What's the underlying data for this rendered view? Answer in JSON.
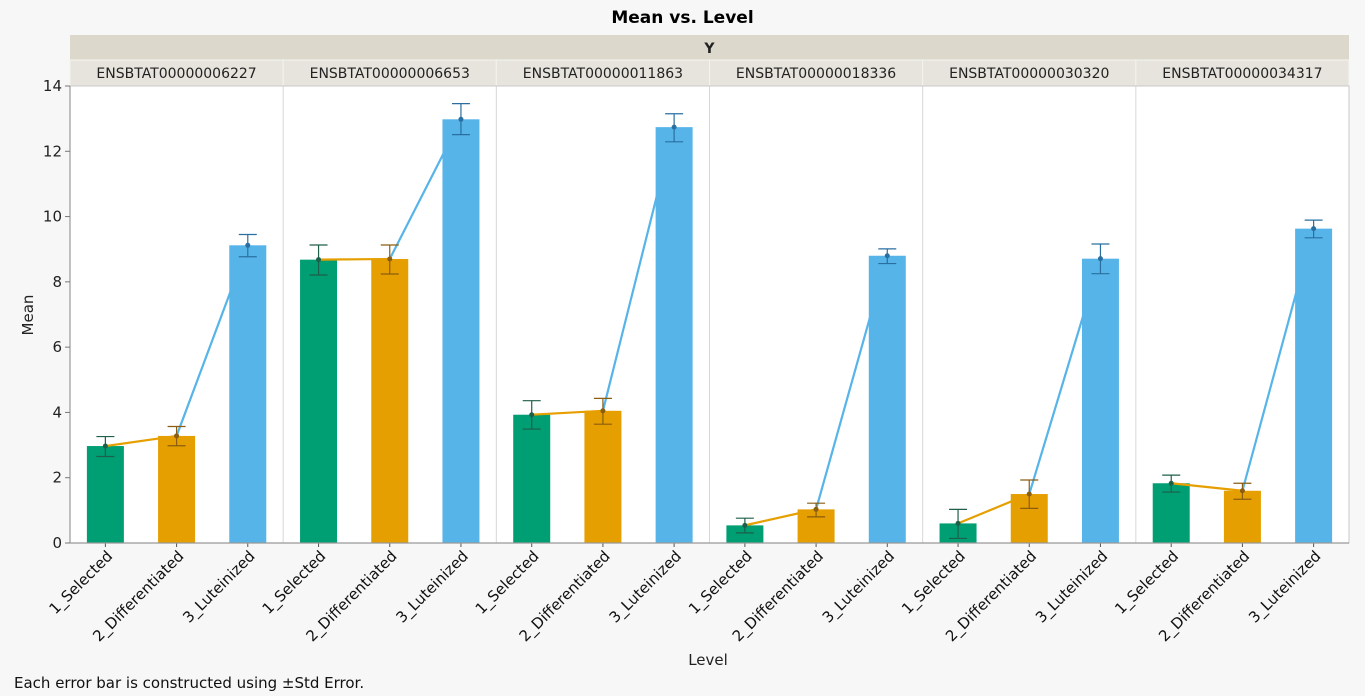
{
  "chart_data": {
    "type": "bar",
    "title": "Mean vs. Level",
    "group_label": "Y",
    "xlabel": "Level",
    "ylabel": "Mean",
    "ylim": [
      0,
      14
    ],
    "yticks": [
      0,
      2,
      4,
      6,
      8,
      10,
      12,
      14
    ],
    "grid": false,
    "legend": "none",
    "categories": [
      "1_Selected",
      "2_Differentiated",
      "3_Luteinized"
    ],
    "category_colors": [
      "#009e73",
      "#e69f00",
      "#56b4e9"
    ],
    "error_bar_colors": [
      "#1d5f4a",
      "#8a5d10",
      "#2a6fa0"
    ],
    "footnote": "Each error bar is constructed using ±Std Error.",
    "panels": [
      {
        "name": "ENSBTAT00000006227",
        "means": [
          2.97,
          3.28,
          9.12
        ],
        "err_low": [
          2.65,
          2.98,
          8.77
        ],
        "err_high": [
          3.26,
          3.57,
          9.45
        ]
      },
      {
        "name": "ENSBTAT00000006653",
        "means": [
          8.68,
          8.7,
          12.98
        ],
        "err_low": [
          8.21,
          8.24,
          12.51
        ],
        "err_high": [
          9.13,
          9.13,
          13.46
        ]
      },
      {
        "name": "ENSBTAT00000011863",
        "means": [
          3.93,
          4.05,
          12.74
        ],
        "err_low": [
          3.49,
          3.64,
          12.29
        ],
        "err_high": [
          4.36,
          4.43,
          13.15
        ]
      },
      {
        "name": "ENSBTAT00000018336",
        "means": [
          0.54,
          1.03,
          8.8
        ],
        "err_low": [
          0.31,
          0.8,
          8.56
        ],
        "err_high": [
          0.76,
          1.22,
          9.01
        ]
      },
      {
        "name": "ENSBTAT00000030320",
        "means": [
          0.6,
          1.5,
          8.71
        ],
        "err_low": [
          0.14,
          1.06,
          8.25
        ],
        "err_high": [
          1.03,
          1.93,
          9.16
        ]
      },
      {
        "name": "ENSBTAT00000034317",
        "means": [
          1.83,
          1.6,
          9.63
        ],
        "err_low": [
          1.56,
          1.34,
          9.35
        ],
        "err_high": [
          2.08,
          1.83,
          9.89
        ]
      }
    ]
  }
}
